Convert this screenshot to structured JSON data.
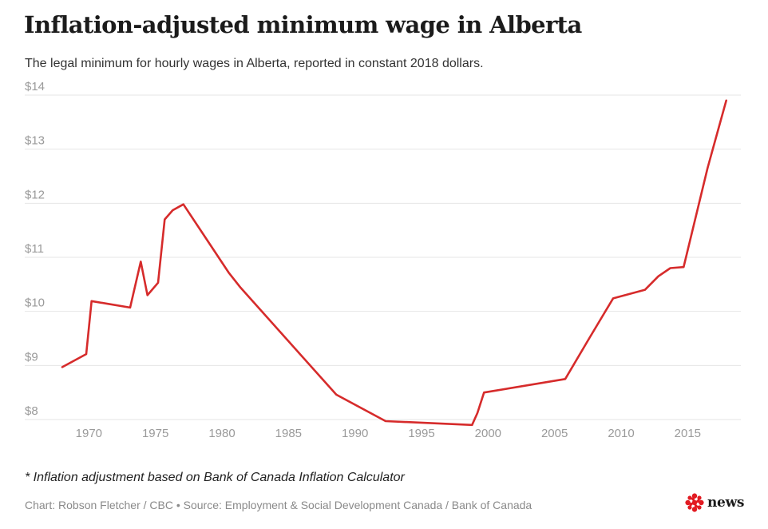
{
  "header": {
    "title": "Inflation-adjusted minimum wage in Alberta",
    "subtitle": "The legal minimum for hourly wages in Alberta, reported in constant 2018 dollars."
  },
  "footer": {
    "footnote": "* Inflation adjustment based on Bank of Canada Inflation Calculator",
    "credit": "Chart: Robson Fletcher / CBC • Source: Employment & Social Development Canada / Bank of Canada",
    "logo_text": "news"
  },
  "colors": {
    "line": "#d62b2b",
    "grid": "#e6e6e6",
    "tick_text": "#9a9a9a",
    "logo": "#e21b22"
  },
  "chart_data": {
    "type": "line",
    "title": "Inflation-adjusted minimum wage in Alberta",
    "subtitle": "The legal minimum for hourly wages in Alberta, reported in constant 2018 dollars.",
    "xlabel": "",
    "ylabel": "",
    "xlim": [
      1968,
      2019
    ],
    "ylim": [
      8,
      14
    ],
    "x_ticks": [
      1970,
      1975,
      1980,
      1985,
      1990,
      1995,
      2000,
      2005,
      2010,
      2015
    ],
    "y_ticks": [
      8,
      9,
      10,
      11,
      12,
      13,
      14
    ],
    "y_tick_labels": [
      "$8",
      "$9",
      "$10",
      "$11",
      "$12",
      "$13",
      "$14"
    ],
    "grid": "horizontal",
    "legend": "none",
    "series": [
      {
        "x": [
          1968,
          1969.8,
          1970.2,
          1973.1,
          1973.9,
          1974.4,
          1975.2,
          1975.7,
          1976.3,
          1977.1,
          1980.5,
          1981.4,
          1988.6,
          1992.3,
          1998.8,
          1999.2,
          1999.7,
          2005.8,
          2007.6,
          2009.4,
          2011.8,
          2012.8,
          2013.7,
          2014.7,
          2016.5,
          2017.9
        ],
        "y": [
          8.97,
          9.21,
          10.19,
          10.07,
          10.92,
          10.3,
          10.53,
          11.7,
          11.87,
          11.98,
          10.72,
          10.44,
          8.46,
          7.97,
          7.9,
          8.12,
          8.5,
          8.75,
          9.5,
          10.24,
          10.4,
          10.65,
          10.8,
          10.82,
          12.65,
          13.9
        ]
      }
    ]
  }
}
